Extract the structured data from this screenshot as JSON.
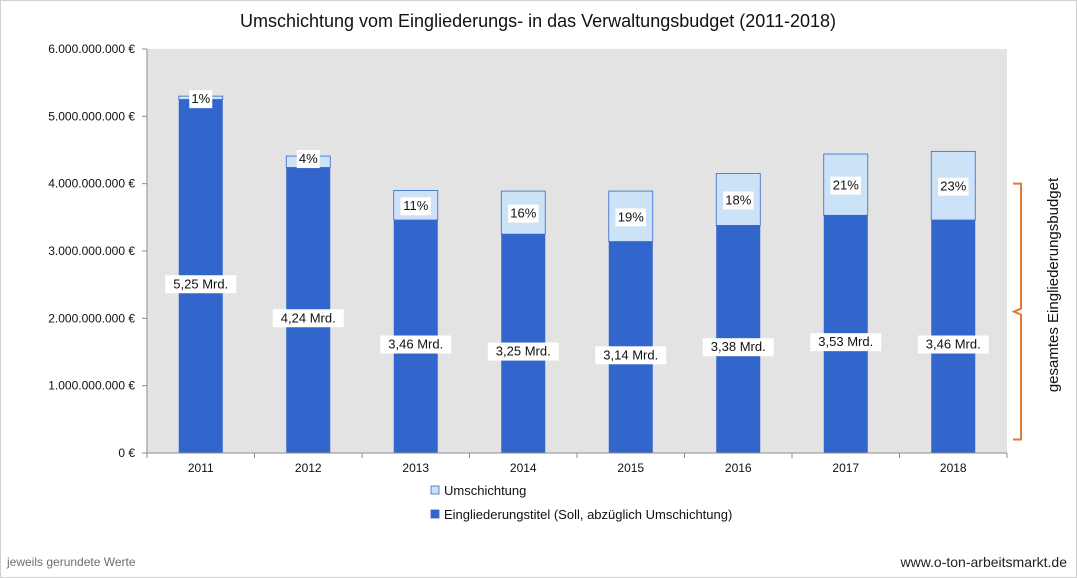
{
  "chart_data": {
    "type": "bar",
    "stacked": true,
    "title": "Umschichtung vom Eingliederungs- in das Verwaltungsbudget (2011-2018)",
    "categories": [
      "2011",
      "2012",
      "2013",
      "2014",
      "2015",
      "2016",
      "2017",
      "2018"
    ],
    "series": [
      {
        "name": "Eingliederungstitel (Soll, abzüglich Umschichtung)",
        "color": "#3366CC",
        "values": [
          5250000000,
          4240000000,
          3460000000,
          3250000000,
          3140000000,
          3380000000,
          3530000000,
          3460000000
        ],
        "labels": [
          "5,25 Mrd.",
          "4,24 Mrd.",
          "3,46 Mrd.",
          "3,25 Mrd.",
          "3,14 Mrd.",
          "3,38 Mrd.",
          "3,53 Mrd.",
          "3,46 Mrd."
        ]
      },
      {
        "name": "Umschichtung",
        "color": "#CCE3F7",
        "values": [
          50000000,
          170000000,
          440000000,
          640000000,
          750000000,
          770000000,
          910000000,
          1020000000
        ],
        "labels": [
          "1%",
          "4%",
          "11%",
          "16%",
          "19%",
          "18%",
          "21%",
          "23%"
        ]
      }
    ],
    "yticks": [
      "0 €",
      "1.000.000.000 €",
      "2.000.000.000 €",
      "3.000.000.000 €",
      "4.000.000.000 €",
      "5.000.000.000 €",
      "6.000.000.000 €"
    ],
    "ylim": [
      0,
      6000000000
    ],
    "grid": false,
    "plot_background": "#E3E3E3",
    "legend_position": "bottom",
    "bracket_label": "gesamtes Eingliederungsbudget",
    "bracket_color": "#E8782E"
  },
  "footer": {
    "note": "jeweils gerundete Werte",
    "source": "www.o-ton-arbeitsmarkt.de"
  }
}
